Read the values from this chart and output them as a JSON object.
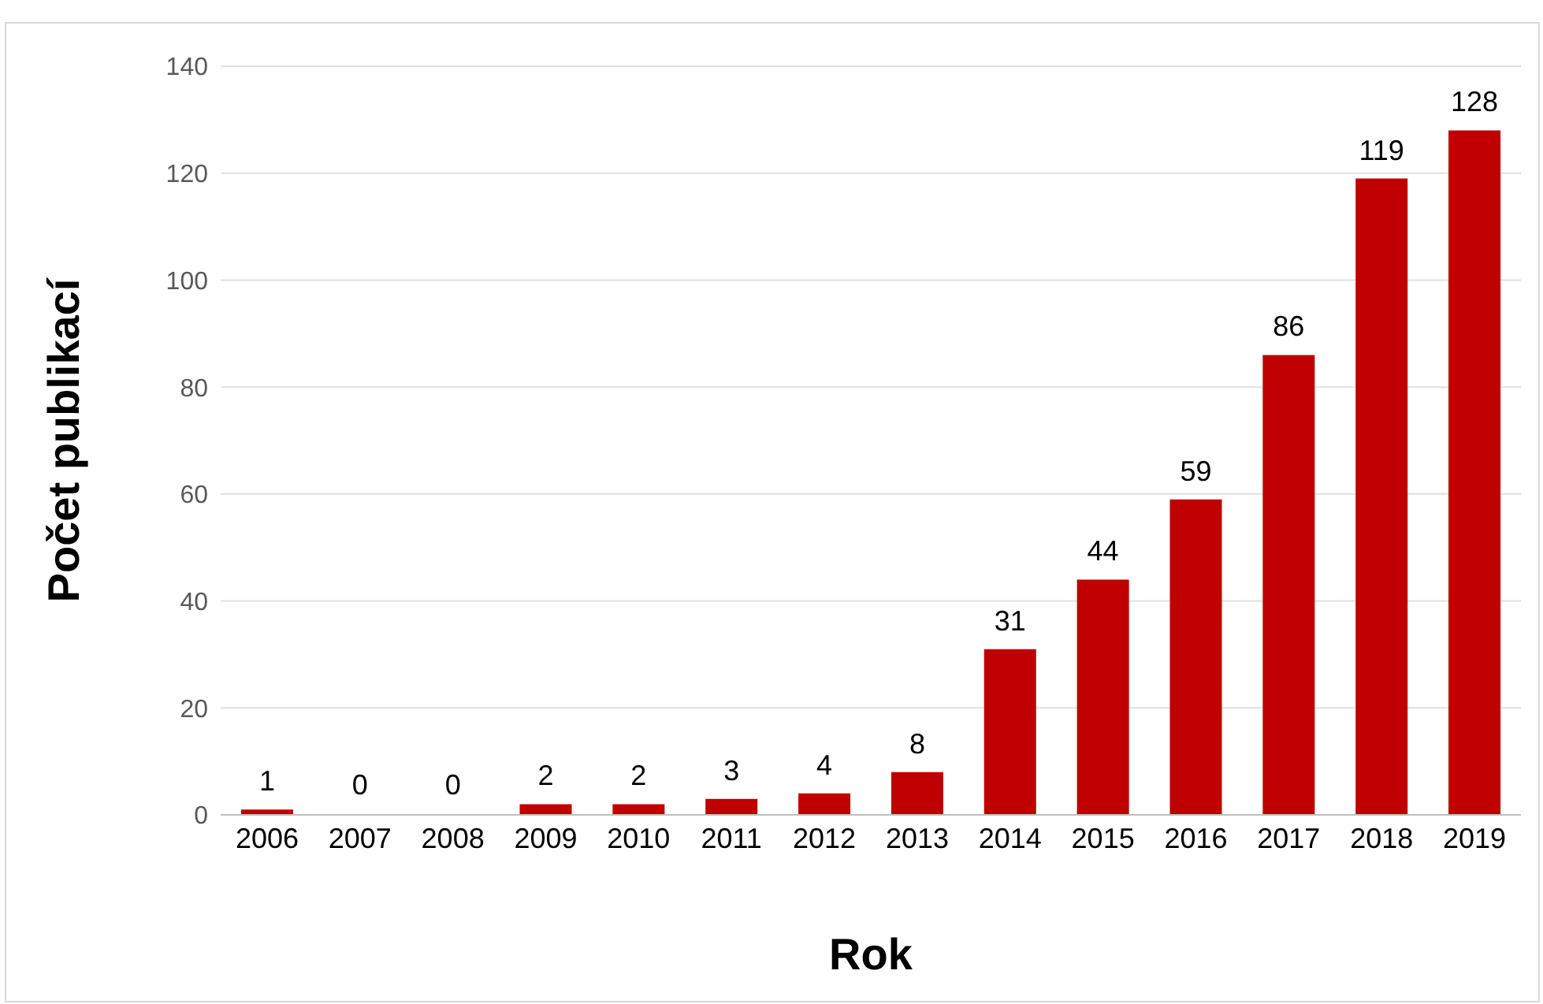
{
  "chart_data": {
    "type": "bar",
    "xlabel": "Rok",
    "ylabel": "Počet publikací",
    "categories": [
      "2006",
      "2007",
      "2008",
      "2009",
      "2010",
      "2011",
      "2012",
      "2013",
      "2014",
      "2015",
      "2016",
      "2017",
      "2018",
      "2019"
    ],
    "values": [
      1,
      0,
      0,
      2,
      2,
      3,
      4,
      8,
      31,
      44,
      59,
      86,
      119,
      128
    ],
    "color": "#c00000",
    "ylim": [
      0,
      140
    ],
    "yticks": [
      0,
      20,
      40,
      60,
      80,
      100,
      120,
      140
    ],
    "grid": "y",
    "data_labels": true
  }
}
